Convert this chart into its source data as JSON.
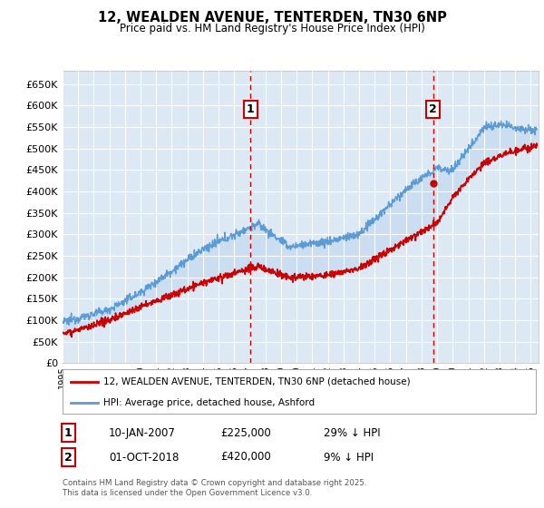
{
  "title": "12, WEALDEN AVENUE, TENTERDEN, TN30 6NP",
  "subtitle": "Price paid vs. HM Land Registry's House Price Index (HPI)",
  "xlim_start": 1995.0,
  "xlim_end": 2025.5,
  "ylim_min": 0,
  "ylim_max": 680000,
  "yticks": [
    0,
    50000,
    100000,
    150000,
    200000,
    250000,
    300000,
    350000,
    400000,
    450000,
    500000,
    550000,
    600000,
    650000
  ],
  "bg_color": "#dce9f5",
  "hpi_color": "#5b9bd5",
  "price_color": "#cc0000",
  "fill_color": "#c5d9f0",
  "sale1_x": 2007.03,
  "sale1_y": 225000,
  "sale2_x": 2018.75,
  "sale2_y": 420000,
  "sale1_label": "10-JAN-2007",
  "sale1_price": "£225,000",
  "sale1_note": "29% ↓ HPI",
  "sale2_label": "01-OCT-2018",
  "sale2_price": "£420,000",
  "sale2_note": "9% ↓ HPI",
  "legend_line1": "12, WEALDEN AVENUE, TENTERDEN, TN30 6NP (detached house)",
  "legend_line2": "HPI: Average price, detached house, Ashford",
  "footer": "Contains HM Land Registry data © Crown copyright and database right 2025.\nThis data is licensed under the Open Government Licence v3.0."
}
